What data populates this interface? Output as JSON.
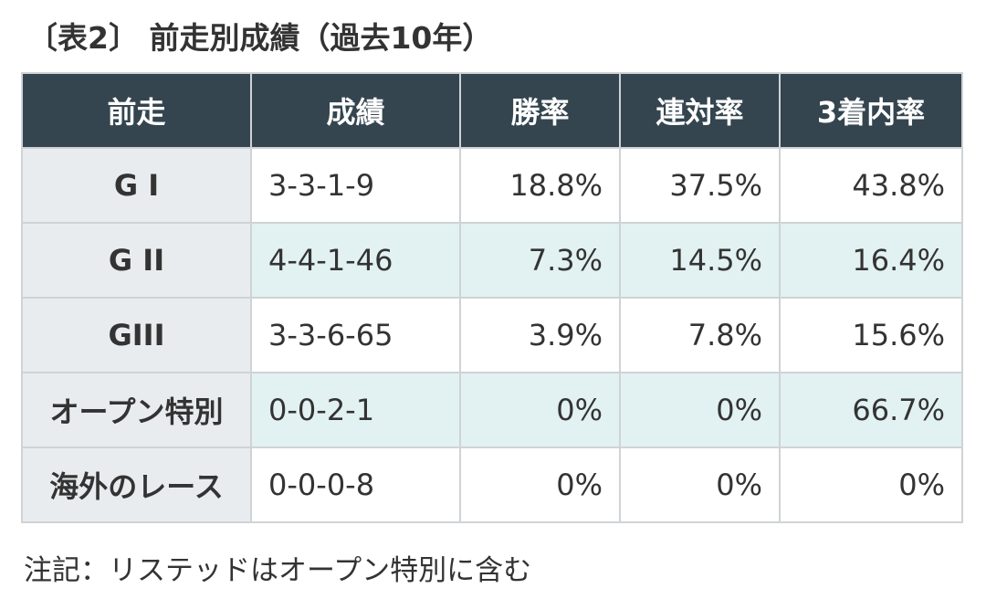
{
  "title": "〔表2〕 前走別成績（過去10年）",
  "table": {
    "headers": [
      "前走",
      "成績",
      "勝率",
      "連対率",
      "3着内率"
    ],
    "rows": [
      {
        "label": "G I",
        "record": "3-3-1-9",
        "win_rate": "18.8%",
        "place_rate": "37.5%",
        "show_rate": "43.8%"
      },
      {
        "label": "G II",
        "record": "4-4-1-46",
        "win_rate": "7.3%",
        "place_rate": "14.5%",
        "show_rate": "16.4%"
      },
      {
        "label": "GIII",
        "record": "3-3-6-65",
        "win_rate": "3.9%",
        "place_rate": "7.8%",
        "show_rate": "15.6%"
      },
      {
        "label": "オープン特別",
        "record": "0-0-2-1",
        "win_rate": "0%",
        "place_rate": "0%",
        "show_rate": "66.7%"
      },
      {
        "label": "海外のレース",
        "record": "0-0-0-8",
        "win_rate": "0%",
        "place_rate": "0%",
        "show_rate": "0%"
      }
    ]
  },
  "note": "注記：リステッドはオープン特別に含む",
  "colors": {
    "header_bg": "#34454f",
    "row_header_bg": "#e9ecef",
    "shaded_row_bg": "#e2f1f1",
    "border": "#cfd3d6",
    "text": "#333333"
  }
}
